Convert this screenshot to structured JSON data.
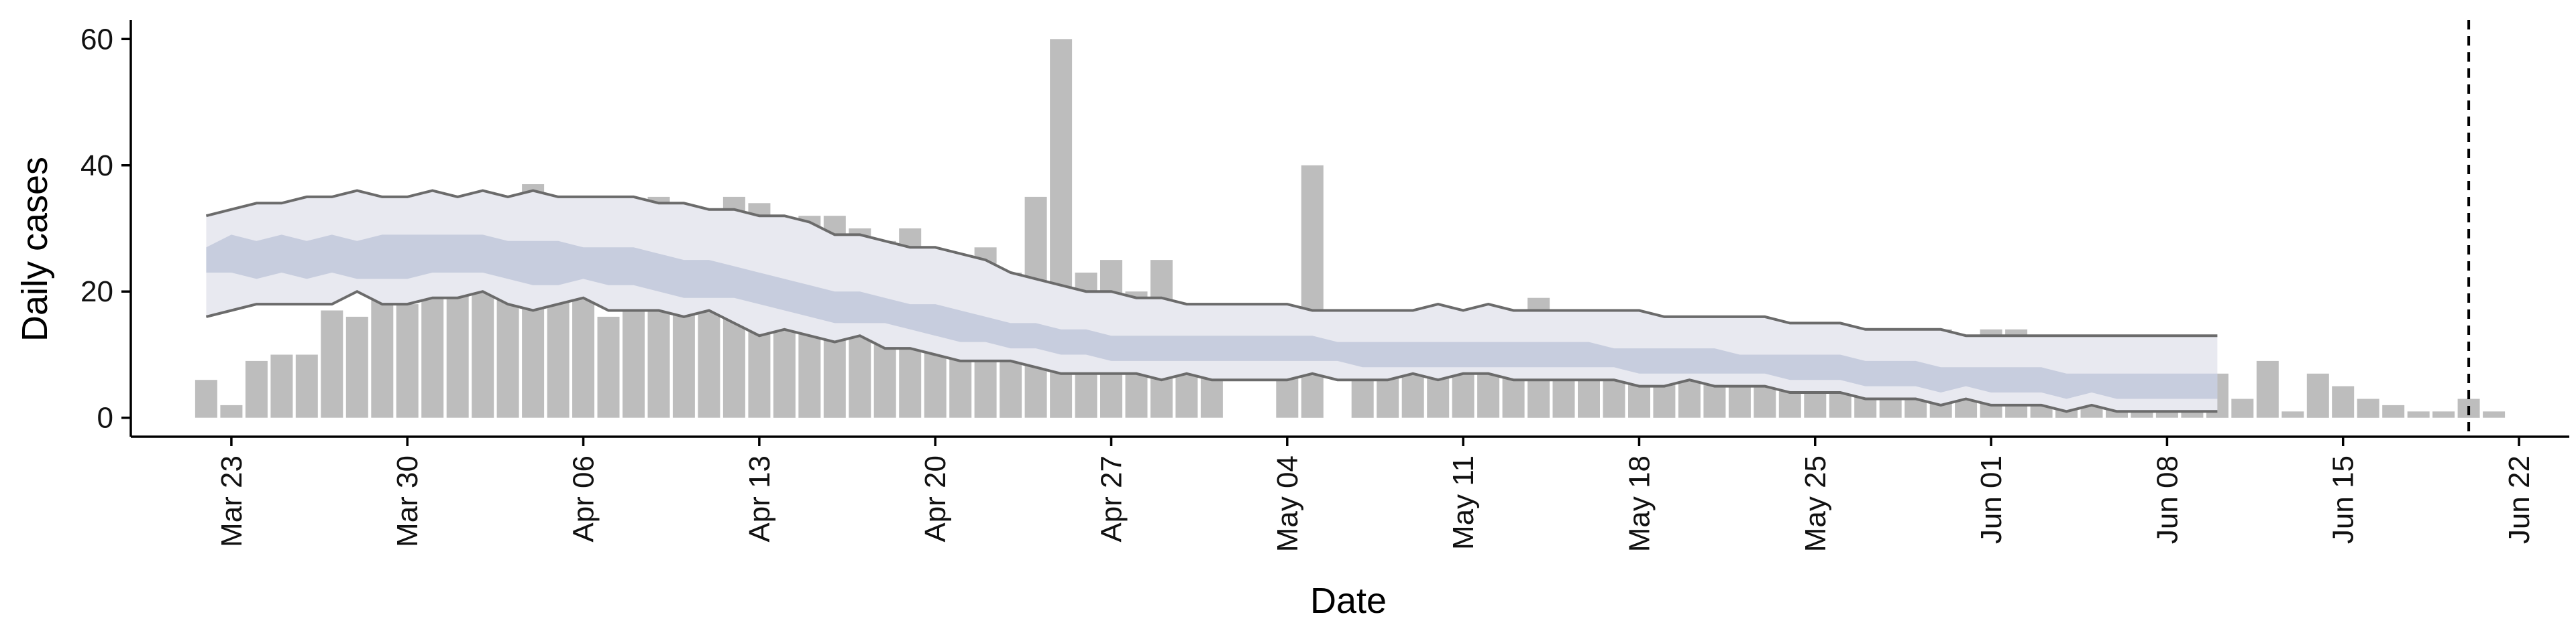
{
  "chart_data": {
    "type": "bar",
    "xlabel": "Date",
    "ylabel": "Daily cases",
    "ylim": [
      -3,
      63
    ],
    "yticks": [
      0,
      20,
      40,
      60
    ],
    "xlim": [
      "2020-03-19",
      "2020-06-24"
    ],
    "xticks": [
      {
        "date": "2020-03-23",
        "label": "Mar 23"
      },
      {
        "date": "2020-03-30",
        "label": "Mar 30"
      },
      {
        "date": "2020-04-06",
        "label": "Apr 06"
      },
      {
        "date": "2020-04-13",
        "label": "Apr 13"
      },
      {
        "date": "2020-04-20",
        "label": "Apr 20"
      },
      {
        "date": "2020-04-27",
        "label": "Apr 27"
      },
      {
        "date": "2020-05-04",
        "label": "May 04"
      },
      {
        "date": "2020-05-11",
        "label": "May 11"
      },
      {
        "date": "2020-05-18",
        "label": "May 18"
      },
      {
        "date": "2020-05-25",
        "label": "May 25"
      },
      {
        "date": "2020-06-01",
        "label": "Jun 01"
      },
      {
        "date": "2020-06-08",
        "label": "Jun 08"
      },
      {
        "date": "2020-06-15",
        "label": "Jun 15"
      },
      {
        "date": "2020-06-22",
        "label": "Jun 22"
      }
    ],
    "grid": false,
    "legend": "none",
    "bars": {
      "start_date": "2020-03-22",
      "values": [
        6,
        2,
        9,
        10,
        10,
        17,
        16,
        24,
        18,
        21,
        20,
        27,
        22,
        37,
        20,
        29,
        16,
        34,
        35,
        29,
        25,
        35,
        34,
        31,
        32,
        32,
        30,
        28,
        30,
        26,
        21,
        27,
        23,
        35,
        60,
        23,
        25,
        20,
        25,
        16,
        18,
        0,
        0,
        16,
        40,
        0,
        11,
        15,
        16,
        9,
        12,
        9,
        9,
        19,
        12,
        9,
        6,
        13,
        15,
        13,
        16,
        16,
        14,
        12,
        13,
        14,
        12,
        14,
        13,
        14,
        13,
        14,
        14,
        12,
        11,
        8,
        10,
        9,
        5,
        6,
        7,
        3,
        9,
        1,
        7,
        5,
        3,
        2,
        1,
        1,
        3,
        1
      ]
    },
    "band_series": {
      "start_date": "2020-03-22",
      "outer_upper": [
        32,
        33,
        34,
        34,
        35,
        35,
        36,
        35,
        35,
        36,
        35,
        36,
        35,
        36,
        35,
        35,
        35,
        35,
        34,
        34,
        33,
        33,
        32,
        32,
        31,
        29,
        29,
        28,
        27,
        27,
        26,
        25,
        23,
        22,
        21,
        20,
        20,
        19,
        19,
        18,
        18,
        18,
        18,
        18,
        17,
        17,
        17,
        17,
        17,
        18,
        17,
        18,
        17,
        17,
        17,
        17,
        17,
        17,
        16,
        16,
        16,
        16,
        16,
        15,
        15,
        15,
        14,
        14,
        14,
        14,
        13,
        13,
        13,
        13,
        13,
        13,
        13,
        13,
        13,
        13,
        13
      ],
      "outer_lower": [
        16,
        17,
        18,
        18,
        18,
        18,
        20,
        18,
        18,
        19,
        19,
        20,
        18,
        17,
        18,
        19,
        17,
        17,
        17,
        16,
        17,
        15,
        13,
        14,
        13,
        12,
        13,
        11,
        11,
        10,
        9,
        9,
        9,
        8,
        7,
        7,
        7,
        7,
        6,
        7,
        6,
        6,
        6,
        6,
        7,
        6,
        6,
        6,
        7,
        6,
        7,
        7,
        6,
        6,
        6,
        6,
        6,
        5,
        5,
        6,
        5,
        5,
        5,
        4,
        4,
        4,
        3,
        3,
        3,
        2,
        3,
        2,
        2,
        2,
        1,
        2,
        1,
        1,
        1,
        1,
        1
      ],
      "inner_upper": [
        27,
        29,
        28,
        29,
        28,
        29,
        28,
        29,
        29,
        29,
        29,
        29,
        28,
        28,
        28,
        27,
        27,
        27,
        26,
        25,
        25,
        24,
        23,
        22,
        21,
        20,
        20,
        19,
        18,
        18,
        17,
        16,
        15,
        15,
        14,
        14,
        13,
        13,
        13,
        13,
        13,
        13,
        13,
        13,
        13,
        12,
        12,
        12,
        12,
        12,
        12,
        12,
        12,
        12,
        12,
        12,
        11,
        11,
        11,
        11,
        11,
        10,
        10,
        10,
        10,
        10,
        9,
        9,
        9,
        8,
        8,
        8,
        8,
        8,
        7,
        7,
        7,
        7,
        7,
        7,
        7
      ],
      "inner_lower": [
        23,
        23,
        22,
        23,
        22,
        23,
        22,
        22,
        22,
        23,
        23,
        23,
        22,
        21,
        21,
        22,
        21,
        21,
        20,
        19,
        19,
        19,
        18,
        17,
        16,
        15,
        15,
        15,
        14,
        13,
        12,
        12,
        11,
        11,
        10,
        10,
        9,
        9,
        9,
        9,
        9,
        9,
        9,
        9,
        9,
        9,
        8,
        8,
        8,
        8,
        8,
        8,
        8,
        8,
        8,
        8,
        8,
        7,
        7,
        7,
        7,
        7,
        7,
        6,
        6,
        6,
        5,
        5,
        5,
        4,
        5,
        4,
        4,
        4,
        3,
        4,
        3,
        3,
        3,
        3,
        3
      ]
    },
    "reference_line": {
      "date": "2020-06-20",
      "style": "dashed"
    },
    "colors": {
      "bars": "#bdbdbd",
      "outer_band": "#e8e9f0",
      "inner_band": "#b3bcd4",
      "band_lines": "#6b6b6b",
      "axis": "#000000"
    }
  }
}
